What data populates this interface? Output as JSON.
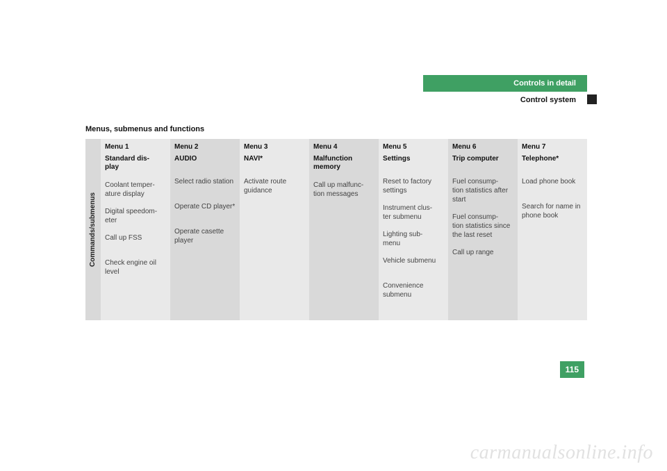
{
  "header": {
    "chapter": "Controls in detail",
    "section": "Control system"
  },
  "title": "Menus, submenus and functions",
  "sideLabel": "Commands/submenus",
  "columns": [
    {
      "menu": "Menu 1",
      "title": "Standard dis-\nplay",
      "rows": [
        "Coolant temper-\nature display",
        "Digital speedom-\neter",
        "Call up FSS",
        "Check engine oil level",
        ""
      ]
    },
    {
      "menu": "Menu 2",
      "title": "AUDIO",
      "rows": [
        "Select radio station",
        "Operate CD player*",
        "Operate casette player",
        "",
        ""
      ]
    },
    {
      "menu": "Menu 3",
      "title": "NAVI*",
      "rows": [
        "Activate route guidance",
        "",
        "",
        "",
        ""
      ]
    },
    {
      "menu": "Menu 4",
      "title": "Malfunction memory",
      "rows": [
        "Call up malfunc-\ntion messages",
        "",
        "",
        "",
        ""
      ]
    },
    {
      "menu": "Menu 5",
      "title": "Settings",
      "rows": [
        "Reset to factory settings",
        "Instrument clus-\nter submenu",
        "Lighting sub-\nmenu",
        "Vehicle submenu",
        "Convenience submenu"
      ]
    },
    {
      "menu": "Menu 6",
      "title": "Trip computer",
      "rows": [
        "Fuel consump-\ntion statistics after start",
        "Fuel consump-\ntion statistics since the last reset",
        "Call up range",
        "",
        ""
      ]
    },
    {
      "menu": "Menu 7",
      "title": "Telephone*",
      "rows": [
        "Load phone book",
        "Search for name in phone book",
        "",
        "",
        ""
      ]
    }
  ],
  "pageNumber": "115",
  "watermark": "carmanualsonline.info",
  "colors": {
    "green": "#3fa063",
    "lightCol": "#e9e9e9",
    "darkCol": "#d9d9d9"
  }
}
